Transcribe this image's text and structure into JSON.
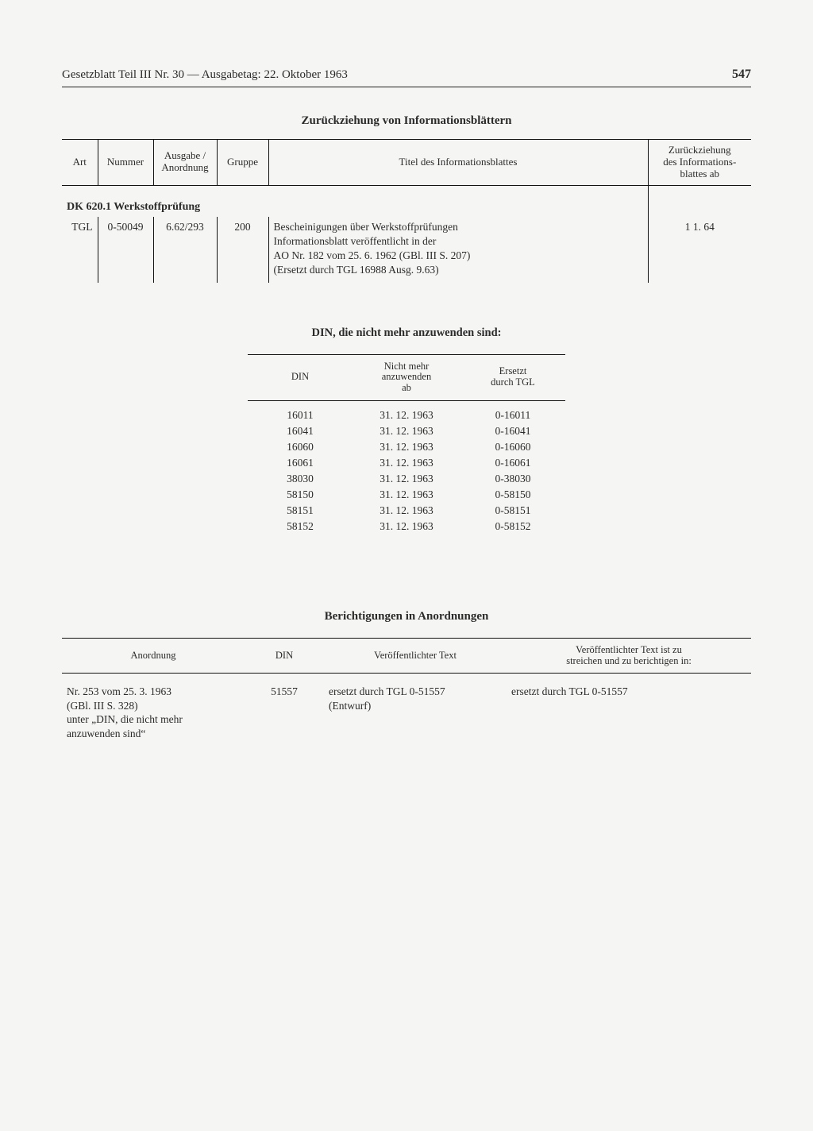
{
  "header": {
    "left": "Gesetzblatt Teil III Nr. 30 — Ausgabetag: 22. Oktober 1963",
    "page": "547"
  },
  "section1": {
    "title": "Zurückziehung von Informationsblättern",
    "columns": {
      "art": "Art",
      "nummer": "Nummer",
      "ausgabe": "Ausgabe /\nAnordnung",
      "gruppe": "Gruppe",
      "titel": "Titel des Informationsblattes",
      "zurueck": "Zurückziehung\ndes Informations-\nblattes ab"
    },
    "dk_heading": "DK  620.1 Werkstoffprüfung",
    "row": {
      "art": "TGL",
      "nummer": "0-50049",
      "ausgabe": "6.62/293",
      "gruppe": "200",
      "titel_l1": "Bescheinigungen über Werkstoffprüfungen",
      "titel_l2": "Informationsblatt veröffentlicht in der",
      "titel_l3": "AO Nr. 182 vom 25. 6. 1962 (GBl. III S. 207)",
      "titel_l4": "(Ersetzt durch TGL 16988 Ausg. 9.63)",
      "zurueck": "1  1. 64"
    }
  },
  "section2": {
    "title": "DIN, die nicht mehr anzuwenden sind:",
    "columns": {
      "din": "DIN",
      "ab": "Nicht mehr\nanzuwenden\nab",
      "ersetzt": "Ersetzt\ndurch TGL"
    },
    "rows": [
      {
        "din": "16011",
        "ab": "31. 12. 1963",
        "ersetzt": "0-16011"
      },
      {
        "din": "16041",
        "ab": "31. 12. 1963",
        "ersetzt": "0-16041"
      },
      {
        "din": "16060",
        "ab": "31. 12. 1963",
        "ersetzt": "0-16060"
      },
      {
        "din": "16061",
        "ab": "31. 12. 1963",
        "ersetzt": "0-16061"
      },
      {
        "din": "38030",
        "ab": "31. 12. 1963",
        "ersetzt": "0-38030"
      },
      {
        "din": "58150",
        "ab": "31. 12. 1963",
        "ersetzt": "0-58150"
      },
      {
        "din": "58151",
        "ab": "31. 12. 1963",
        "ersetzt": "0-58151"
      },
      {
        "din": "58152",
        "ab": "31. 12. 1963",
        "ersetzt": "0-58152"
      }
    ]
  },
  "section3": {
    "title": "Berichtigungen in Anordnungen",
    "columns": {
      "anordnung": "Anordnung",
      "din": "DIN",
      "vtext": "Veröffentlichter Text",
      "korr": "Veröffentlichter Text ist zu\nstreichen und zu berichtigen in:"
    },
    "row": {
      "anordnung_l1": "Nr. 253 vom 25. 3. 1963",
      "anordnung_l2": "(GBl. III S. 328)",
      "anordnung_l3": "unter „DIN, die nicht mehr",
      "anordnung_l4": "anzuwenden sind“",
      "din": "51557",
      "vtext_l1": "ersetzt durch TGL 0-51557",
      "vtext_l2": "(Entwurf)",
      "korr": "ersetzt durch TGL 0-51557"
    }
  }
}
